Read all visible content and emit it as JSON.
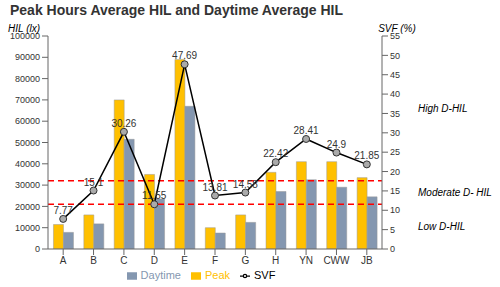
{
  "chart_data": {
    "type": "bar",
    "title": "Peak Hours Average HIL and Daytime Average HIL",
    "categories": [
      "A",
      "B",
      "C",
      "D",
      "E",
      "F",
      "G",
      "H",
      "YN",
      "CWW",
      "JB"
    ],
    "series": [
      {
        "name": "Peak",
        "type": "bar",
        "color": "#ffc000",
        "values": [
          11500,
          16000,
          70000,
          35000,
          89000,
          10000,
          16000,
          36000,
          41000,
          41000,
          33500
        ]
      },
      {
        "name": "Daytime",
        "type": "bar",
        "color": "#8497b0",
        "values": [
          7800,
          11800,
          51500,
          23500,
          67000,
          7500,
          12500,
          27000,
          32500,
          29000,
          24500
        ]
      },
      {
        "name": "SVF",
        "type": "line",
        "axis": "y2",
        "color": "#000000",
        "marker": "circle",
        "data_labels": true,
        "values": [
          7.77,
          15.1,
          30.26,
          11.55,
          47.69,
          13.81,
          14.58,
          22.42,
          28.41,
          24.9,
          21.85
        ]
      }
    ],
    "y_label": "HIL (lx)",
    "y2_label": "SVF (%)",
    "ylim": [
      0,
      100000
    ],
    "yticks": [
      0,
      10000,
      20000,
      30000,
      40000,
      50000,
      60000,
      70000,
      80000,
      90000,
      100000
    ],
    "y2lim": [
      0,
      55
    ],
    "y2ticks": [
      0,
      5,
      10,
      15,
      20,
      25,
      30,
      35,
      40,
      45,
      50,
      55
    ],
    "grid": false,
    "legend": "bottom",
    "reference_lines": {
      "values": [
        32000,
        21000
      ],
      "color": "#ff0000",
      "line_style": "dashed"
    },
    "zones": [
      {
        "label": "High D-HIL",
        "from": 32000,
        "to": 100000
      },
      {
        "label": "Moderate D- HIL",
        "from": 21000,
        "to": 32000
      },
      {
        "label": "Low D-HIL",
        "from": 0,
        "to": 21000
      }
    ]
  }
}
